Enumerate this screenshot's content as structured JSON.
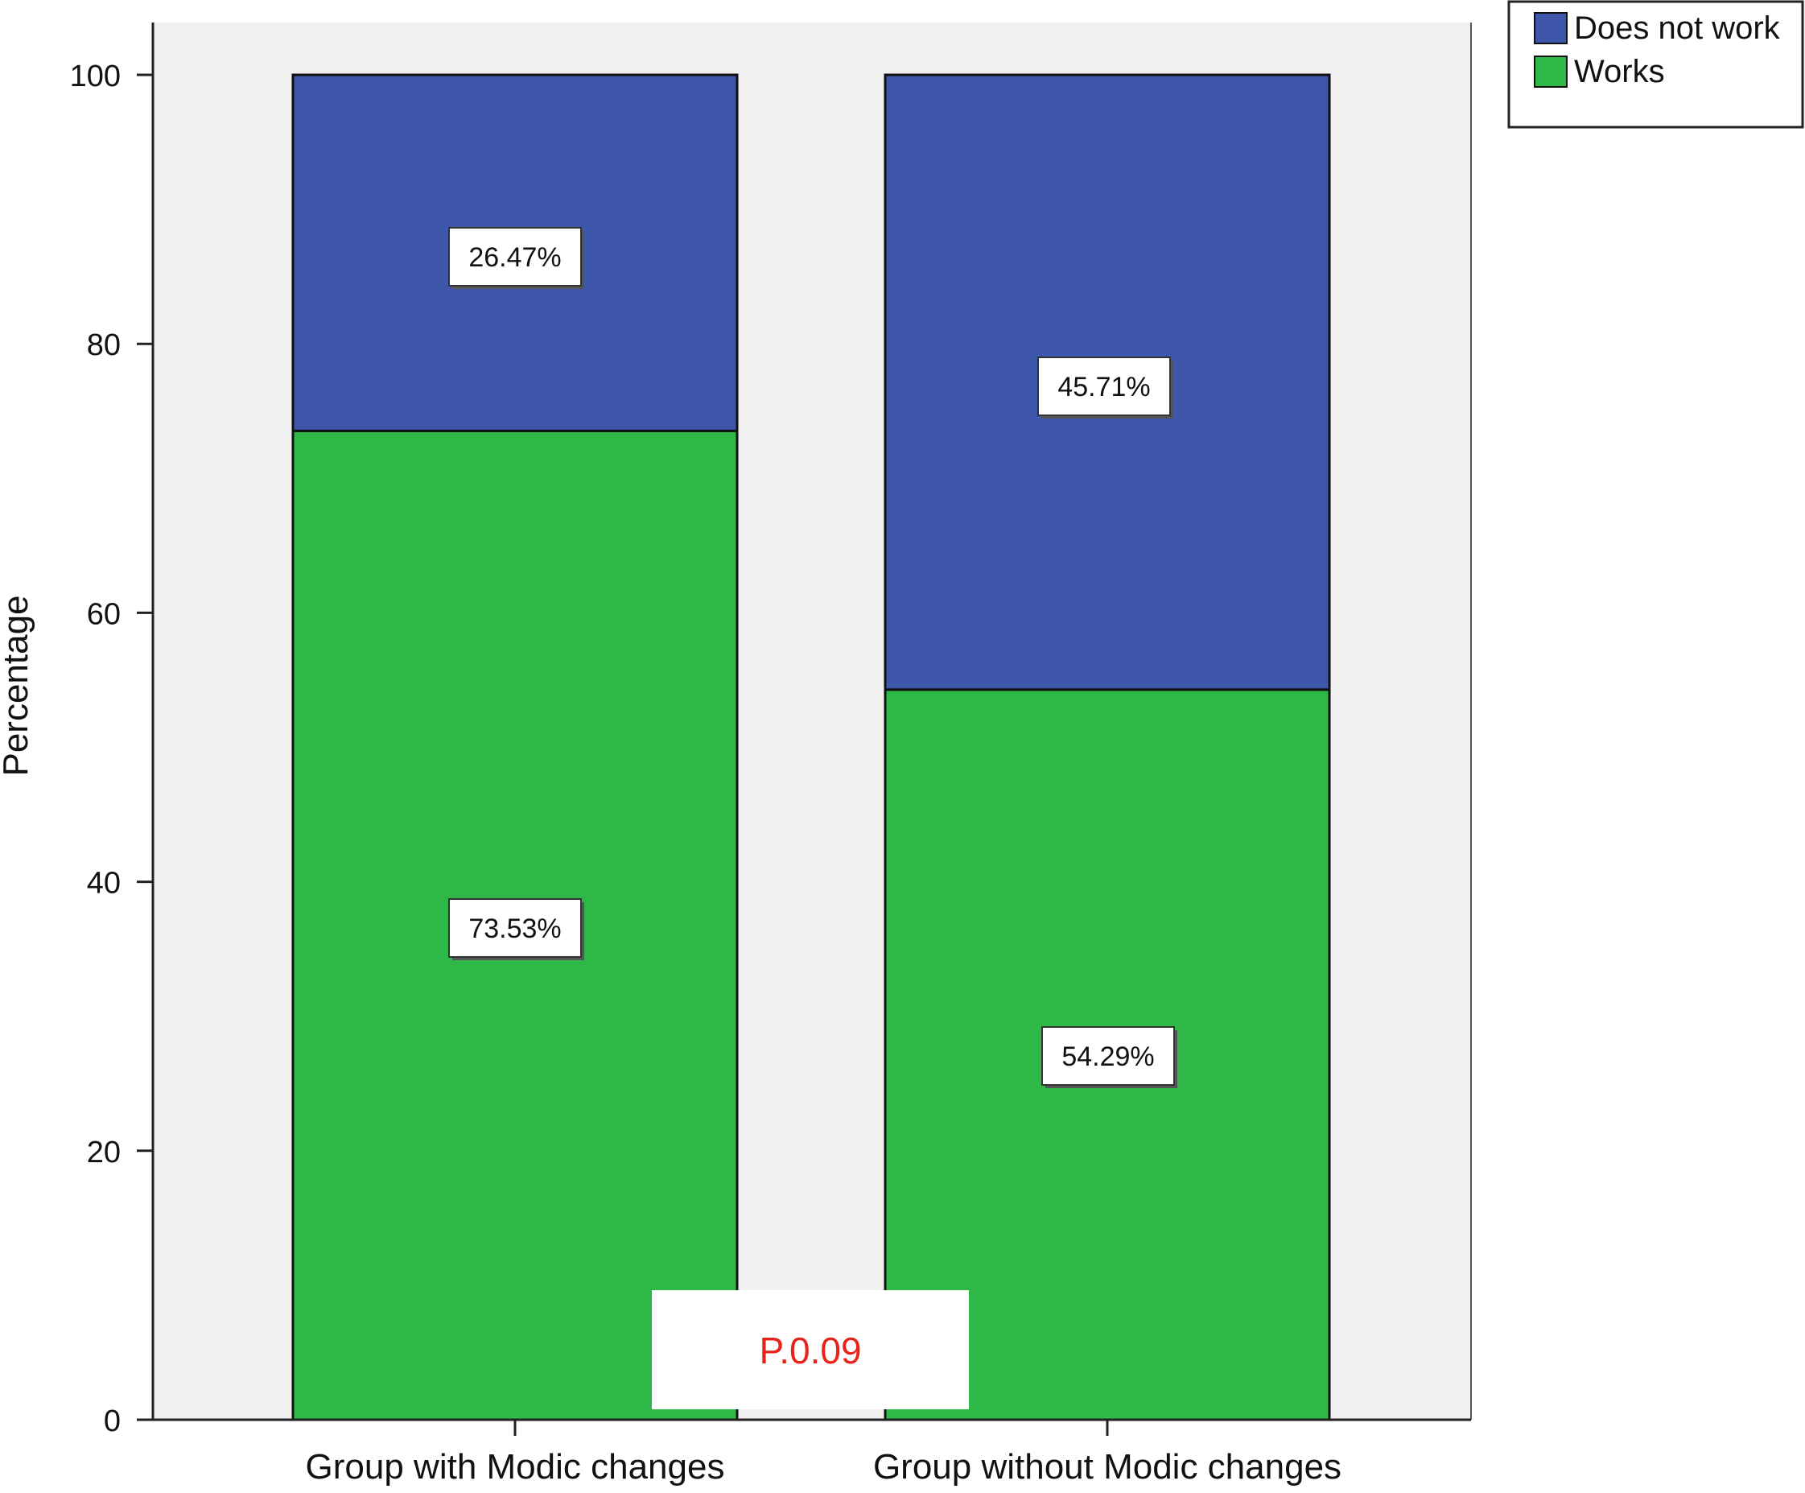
{
  "chart_data": {
    "type": "bar",
    "stacked": true,
    "categories": [
      "Group with Modic changes",
      "Group without Modic changes"
    ],
    "series": [
      {
        "name": "Works",
        "values": [
          73.53,
          54.29
        ],
        "labels": [
          "73.53%",
          "54.29%"
        ],
        "color": "#2eb847"
      },
      {
        "name": "Does not work",
        "values": [
          26.47,
          45.71
        ],
        "labels": [
          "26.47%",
          "45.71%"
        ],
        "color": "#3e57ab"
      }
    ],
    "legend_order": [
      "Does not work",
      "Works"
    ],
    "ylabel": "Percentage",
    "xlabel": "",
    "ylim": [
      0,
      100
    ],
    "yticks": [
      0,
      20,
      40,
      60,
      80,
      100
    ],
    "legend_position": "top-right",
    "plot_background": "#f0f0f0",
    "grid": false,
    "annotation": {
      "text": "P.0.09",
      "color": "#e8231d"
    }
  }
}
